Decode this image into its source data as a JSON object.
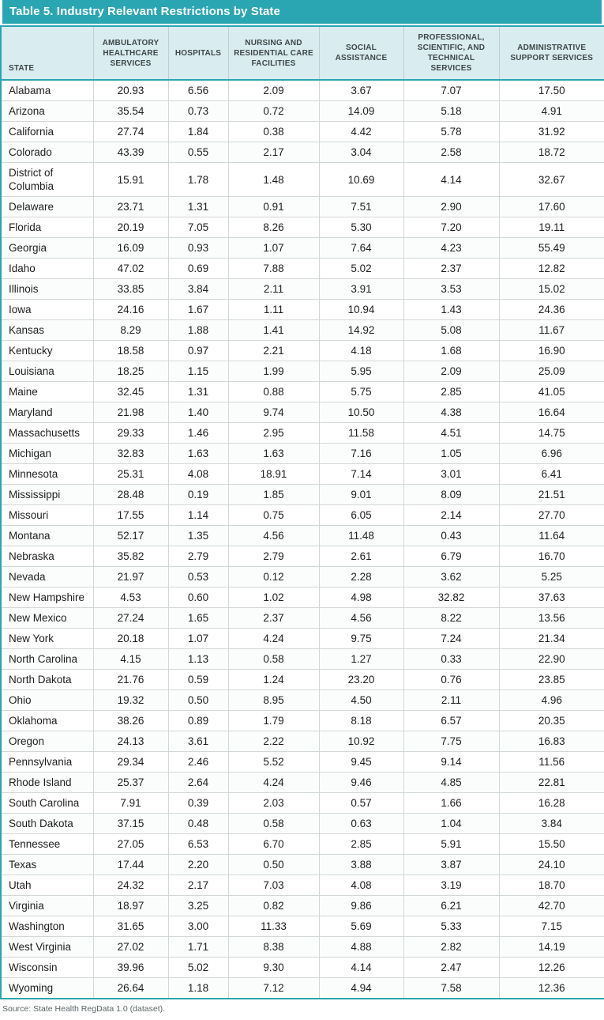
{
  "title": "Table 5. Industry Relevant Restrictions by State",
  "source_note": "Source: State Health RegData 1.0 (dataset).",
  "colors": {
    "header_bar": "#2aa5b2",
    "header_row_bg": "#d9ecef",
    "outer_border": "#2aa5b2",
    "grid_line": "#d2d7d8"
  },
  "chart_data": {
    "type": "table",
    "title": "Table 5. Industry Relevant Restrictions by State",
    "columns": [
      "STATE",
      "AMBULATORY HEALTHCARE SERVICES",
      "HOSPITALS",
      "NURSING AND RESIDENTIAL CARE FACILITIES",
      "SOCIAL ASSISTANCE",
      "PROFESSIONAL, SCIENTIFIC, AND TECHNICAL SERVICES",
      "ADMINISTRATIVE SUPPORT SERVICES"
    ],
    "rows": [
      [
        "Alabama",
        "20.93",
        "6.56",
        "2.09",
        "3.67",
        "7.07",
        "17.50"
      ],
      [
        "Arizona",
        "35.54",
        "0.73",
        "0.72",
        "14.09",
        "5.18",
        "4.91"
      ],
      [
        "California",
        "27.74",
        "1.84",
        "0.38",
        "4.42",
        "5.78",
        "31.92"
      ],
      [
        "Colorado",
        "43.39",
        "0.55",
        "2.17",
        "3.04",
        "2.58",
        "18.72"
      ],
      [
        "District of Columbia",
        "15.91",
        "1.78",
        "1.48",
        "10.69",
        "4.14",
        "32.67"
      ],
      [
        "Delaware",
        "23.71",
        "1.31",
        "0.91",
        "7.51",
        "2.90",
        "17.60"
      ],
      [
        "Florida",
        "20.19",
        "7.05",
        "8.26",
        "5.30",
        "7.20",
        "19.11"
      ],
      [
        "Georgia",
        "16.09",
        "0.93",
        "1.07",
        "7.64",
        "4.23",
        "55.49"
      ],
      [
        "Idaho",
        "47.02",
        "0.69",
        "7.88",
        "5.02",
        "2.37",
        "12.82"
      ],
      [
        "Illinois",
        "33.85",
        "3.84",
        "2.11",
        "3.91",
        "3.53",
        "15.02"
      ],
      [
        "Iowa",
        "24.16",
        "1.67",
        "1.11",
        "10.94",
        "1.43",
        "24.36"
      ],
      [
        "Kansas",
        "8.29",
        "1.88",
        "1.41",
        "14.92",
        "5.08",
        "11.67"
      ],
      [
        "Kentucky",
        "18.58",
        "0.97",
        "2.21",
        "4.18",
        "1.68",
        "16.90"
      ],
      [
        "Louisiana",
        "18.25",
        "1.15",
        "1.99",
        "5.95",
        "2.09",
        "25.09"
      ],
      [
        "Maine",
        "32.45",
        "1.31",
        "0.88",
        "5.75",
        "2.85",
        "41.05"
      ],
      [
        "Maryland",
        "21.98",
        "1.40",
        "9.74",
        "10.50",
        "4.38",
        "16.64"
      ],
      [
        "Massachusetts",
        "29.33",
        "1.46",
        "2.95",
        "11.58",
        "4.51",
        "14.75"
      ],
      [
        "Michigan",
        "32.83",
        "1.63",
        "1.63",
        "7.16",
        "1.05",
        "6.96"
      ],
      [
        "Minnesota",
        "25.31",
        "4.08",
        "18.91",
        "7.14",
        "3.01",
        "6.41"
      ],
      [
        "Mississippi",
        "28.48",
        "0.19",
        "1.85",
        "9.01",
        "8.09",
        "21.51"
      ],
      [
        "Missouri",
        "17.55",
        "1.14",
        "0.75",
        "6.05",
        "2.14",
        "27.70"
      ],
      [
        "Montana",
        "52.17",
        "1.35",
        "4.56",
        "11.48",
        "0.43",
        "11.64"
      ],
      [
        "Nebraska",
        "35.82",
        "2.79",
        "2.79",
        "2.61",
        "6.79",
        "16.70"
      ],
      [
        "Nevada",
        "21.97",
        "0.53",
        "0.12",
        "2.28",
        "3.62",
        "5.25"
      ],
      [
        "New Hampshire",
        "4.53",
        "0.60",
        "1.02",
        "4.98",
        "32.82",
        "37.63"
      ],
      [
        "New Mexico",
        "27.24",
        "1.65",
        "2.37",
        "4.56",
        "8.22",
        "13.56"
      ],
      [
        "New York",
        "20.18",
        "1.07",
        "4.24",
        "9.75",
        "7.24",
        "21.34"
      ],
      [
        "North Carolina",
        "4.15",
        "1.13",
        "0.58",
        "1.27",
        "0.33",
        "22.90"
      ],
      [
        "North Dakota",
        "21.76",
        "0.59",
        "1.24",
        "23.20",
        "0.76",
        "23.85"
      ],
      [
        "Ohio",
        "19.32",
        "0.50",
        "8.95",
        "4.50",
        "2.11",
        "4.96"
      ],
      [
        "Oklahoma",
        "38.26",
        "0.89",
        "1.79",
        "8.18",
        "6.57",
        "20.35"
      ],
      [
        "Oregon",
        "24.13",
        "3.61",
        "2.22",
        "10.92",
        "7.75",
        "16.83"
      ],
      [
        "Pennsylvania",
        "29.34",
        "2.46",
        "5.52",
        "9.45",
        "9.14",
        "11.56"
      ],
      [
        "Rhode Island",
        "25.37",
        "2.64",
        "4.24",
        "9.46",
        "4.85",
        "22.81"
      ],
      [
        "South Carolina",
        "7.91",
        "0.39",
        "2.03",
        "0.57",
        "1.66",
        "16.28"
      ],
      [
        "South Dakota",
        "37.15",
        "0.48",
        "0.58",
        "0.63",
        "1.04",
        "3.84"
      ],
      [
        "Tennessee",
        "27.05",
        "6.53",
        "6.70",
        "2.85",
        "5.91",
        "15.50"
      ],
      [
        "Texas",
        "17.44",
        "2.20",
        "0.50",
        "3.88",
        "3.87",
        "24.10"
      ],
      [
        "Utah",
        "24.32",
        "2.17",
        "7.03",
        "4.08",
        "3.19",
        "18.70"
      ],
      [
        "Virginia",
        "18.97",
        "3.25",
        "0.82",
        "9.86",
        "6.21",
        "42.70"
      ],
      [
        "Washington",
        "31.65",
        "3.00",
        "11.33",
        "5.69",
        "5.33",
        "7.15"
      ],
      [
        "West Virginia",
        "27.02",
        "1.71",
        "8.38",
        "4.88",
        "2.82",
        "14.19"
      ],
      [
        "Wisconsin",
        "39.96",
        "5.02",
        "9.30",
        "4.14",
        "2.47",
        "12.26"
      ],
      [
        "Wyoming",
        "26.64",
        "1.18",
        "7.12",
        "4.94",
        "7.58",
        "12.36"
      ]
    ]
  }
}
